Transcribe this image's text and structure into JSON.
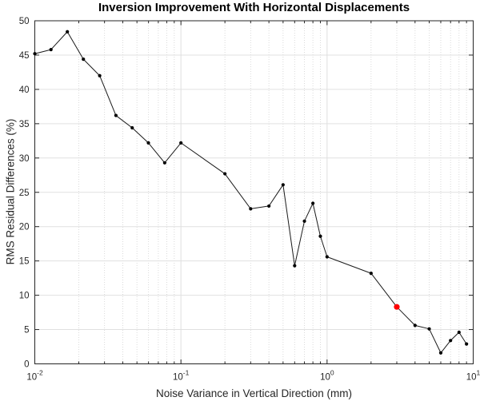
{
  "chart_data": {
    "type": "line",
    "title": "Inversion Improvement With Horizontal Displacements",
    "xlabel": "Noise Variance in Vertical Direction (mm)",
    "ylabel": "RMS Residual Differences (%)",
    "xscale": "log",
    "xlim": [
      0.01,
      10
    ],
    "ylim": [
      0,
      50
    ],
    "yticks": [
      0,
      5,
      10,
      15,
      20,
      25,
      30,
      35,
      40,
      45,
      50
    ],
    "ytick_labels": [
      "0",
      "5",
      "10",
      "15",
      "20",
      "25",
      "30",
      "35",
      "40",
      "45",
      "50"
    ],
    "xticks": [
      0.01,
      0.1,
      1,
      10
    ],
    "xtick_labels": [
      {
        "base": "10",
        "exp": "-2"
      },
      {
        "base": "10",
        "exp": "-1"
      },
      {
        "base": "10",
        "exp": "0"
      },
      {
        "base": "10",
        "exp": "1"
      }
    ],
    "grid": true,
    "minor_grid": true,
    "legend": "none",
    "series": [
      {
        "name": "rms-residual-differences",
        "line_color": "#1a1a1a",
        "marker": "filled-circle",
        "marker_color": "#000000",
        "x": [
          0.01,
          0.0129,
          0.0167,
          0.0215,
          0.0278,
          0.0359,
          0.0464,
          0.0599,
          0.0774,
          0.1,
          0.2,
          0.3,
          0.4,
          0.5,
          0.6,
          0.7,
          0.8,
          0.9,
          1,
          2,
          3,
          4,
          5,
          6,
          7,
          8,
          9
        ],
        "y": [
          45.2,
          45.8,
          48.4,
          44.4,
          42.0,
          36.2,
          34.4,
          32.2,
          29.3,
          32.2,
          27.7,
          22.6,
          23.0,
          26.1,
          14.3,
          20.8,
          23.4,
          18.6,
          15.6,
          13.2,
          8.3,
          5.6,
          5.1,
          1.6,
          3.4,
          4.6,
          2.9
        ]
      }
    ],
    "highlight_point": {
      "index": 20,
      "x": 3,
      "y": 8.3,
      "color": "#ff0000"
    },
    "colors": {
      "axis": "#262626",
      "tick_label": "#262626",
      "major_grid": "#e0e0e0",
      "minor_grid": "#d6d6d6",
      "background": "#ffffff"
    }
  }
}
